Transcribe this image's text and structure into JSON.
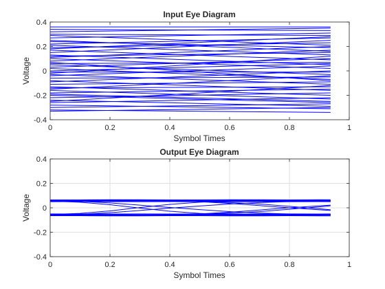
{
  "chart_data": [
    {
      "type": "line",
      "title": "Input Eye Diagram",
      "xlabel": "Symbol Times",
      "ylabel": "Voltage",
      "xlim": [
        0,
        1
      ],
      "ylim": [
        -0.4,
        0.4
      ],
      "x_ticks": [
        "0",
        "0.2",
        "0.4",
        "0.6",
        "0.8",
        "1"
      ],
      "y_ticks": [
        "-0.4",
        "-0.2",
        "0",
        "0.2",
        "0.4"
      ],
      "grid": false,
      "color": "#0000ff",
      "x": [
        0,
        0.9375
      ],
      "series": [
        {
          "values": [
            0.36,
            0.36
          ]
        },
        {
          "values": [
            0.34,
            0.33
          ]
        },
        {
          "values": [
            0.32,
            0.35
          ]
        },
        {
          "values": [
            0.3,
            0.29
          ]
        },
        {
          "values": [
            0.29,
            0.21
          ]
        },
        {
          "values": [
            0.27,
            0.31
          ]
        },
        {
          "values": [
            0.24,
            0.19
          ]
        },
        {
          "values": [
            0.22,
            0.27
          ]
        },
        {
          "values": [
            0.21,
            0.13
          ]
        },
        {
          "values": [
            0.19,
            0.23
          ]
        },
        {
          "values": [
            0.17,
            0.09
          ]
        },
        {
          "values": [
            0.15,
            0.25
          ]
        },
        {
          "values": [
            0.13,
            0.05
          ]
        },
        {
          "values": [
            0.12,
            0.15
          ]
        },
        {
          "values": [
            0.1,
            0.02
          ]
        },
        {
          "values": [
            0.08,
            0.17
          ]
        },
        {
          "values": [
            0.06,
            0.07
          ]
        },
        {
          "values": [
            0.05,
            -0.03
          ]
        },
        {
          "values": [
            0.03,
            0.1
          ]
        },
        {
          "values": [
            0.02,
            -0.07
          ]
        },
        {
          "values": [
            0.0,
            0.06
          ]
        },
        {
          "values": [
            -0.01,
            -0.01
          ]
        },
        {
          "values": [
            -0.03,
            -0.11
          ]
        },
        {
          "values": [
            -0.04,
            0.04
          ]
        },
        {
          "values": [
            -0.06,
            -0.05
          ]
        },
        {
          "values": [
            -0.08,
            -0.16
          ]
        },
        {
          "values": [
            -0.09,
            0.0
          ]
        },
        {
          "values": [
            -0.11,
            -0.09
          ]
        },
        {
          "values": [
            -0.13,
            -0.2
          ]
        },
        {
          "values": [
            -0.14,
            -0.13
          ]
        },
        {
          "values": [
            -0.16,
            -0.23
          ]
        },
        {
          "values": [
            -0.18,
            -0.15
          ]
        },
        {
          "values": [
            -0.2,
            -0.26
          ]
        },
        {
          "values": [
            -0.22,
            -0.18
          ]
        },
        {
          "values": [
            -0.24,
            -0.29
          ]
        },
        {
          "values": [
            -0.26,
            -0.22
          ]
        },
        {
          "values": [
            -0.28,
            -0.31
          ]
        },
        {
          "values": [
            -0.3,
            -0.27
          ]
        },
        {
          "values": [
            -0.32,
            -0.34
          ]
        },
        {
          "values": [
            -0.33,
            -0.3
          ]
        },
        {
          "values": [
            0.25,
            0.16
          ]
        },
        {
          "values": [
            0.11,
            0.2
          ]
        },
        {
          "values": [
            -0.02,
            0.12
          ]
        },
        {
          "values": [
            -0.15,
            -0.04
          ]
        },
        {
          "values": [
            -0.25,
            -0.12
          ]
        },
        {
          "values": [
            0.07,
            -0.08
          ]
        },
        {
          "values": [
            0.18,
            0.28
          ]
        },
        {
          "values": [
            -0.19,
            -0.25
          ]
        }
      ]
    },
    {
      "type": "line",
      "title": "Output Eye Diagram",
      "xlabel": "Symbol Times",
      "ylabel": "Voltage",
      "xlim": [
        0,
        1
      ],
      "ylim": [
        -0.4,
        0.4
      ],
      "x_ticks": [
        "0",
        "0.2",
        "0.4",
        "0.6",
        "0.8",
        "1"
      ],
      "y_ticks": [
        "-0.4",
        "-0.2",
        "0",
        "0.2",
        "0.4"
      ],
      "grid": true,
      "color": "#0000ff",
      "x": [
        0,
        0.1,
        0.2,
        0.3,
        0.4,
        0.5,
        0.6,
        0.7,
        0.8,
        0.9,
        0.9375
      ],
      "series": [
        {
          "values": [
            0.065,
            0.065,
            0.066,
            0.066,
            0.065,
            0.065,
            0.066,
            0.066,
            0.065,
            0.066,
            0.066
          ]
        },
        {
          "values": [
            0.06,
            0.061,
            0.061,
            0.06,
            0.061,
            0.06,
            0.061,
            0.061,
            0.06,
            0.061,
            0.06
          ]
        },
        {
          "values": [
            0.055,
            0.056,
            0.055,
            0.056,
            0.056,
            0.055,
            0.056,
            0.055,
            0.056,
            0.056,
            0.055
          ]
        },
        {
          "values": [
            0.05,
            0.051,
            0.051,
            0.05,
            0.051,
            0.05,
            0.051,
            0.051,
            0.05,
            0.051,
            0.05
          ]
        },
        {
          "values": [
            -0.05,
            -0.051,
            -0.051,
            -0.05,
            -0.051,
            -0.05,
            -0.051,
            -0.051,
            -0.05,
            -0.051,
            -0.05
          ]
        },
        {
          "values": [
            -0.055,
            -0.056,
            -0.055,
            -0.056,
            -0.056,
            -0.055,
            -0.056,
            -0.055,
            -0.056,
            -0.056,
            -0.055
          ]
        },
        {
          "values": [
            -0.06,
            -0.061,
            -0.061,
            -0.06,
            -0.061,
            -0.06,
            -0.061,
            -0.061,
            -0.06,
            -0.061,
            -0.06
          ]
        },
        {
          "values": [
            -0.065,
            -0.065,
            -0.066,
            -0.066,
            -0.065,
            -0.065,
            -0.066,
            -0.066,
            -0.065,
            -0.066,
            -0.066
          ]
        },
        {
          "values": [
            0.06,
            0.053,
            0.04,
            0.022,
            0.003,
            -0.015,
            -0.031,
            -0.043,
            -0.051,
            -0.055,
            -0.056
          ]
        },
        {
          "values": [
            -0.06,
            -0.053,
            -0.04,
            -0.022,
            -0.003,
            0.015,
            0.031,
            0.043,
            0.051,
            0.055,
            0.056
          ]
        },
        {
          "values": [
            0.055,
            0.046,
            0.025,
            -0.002,
            -0.028,
            -0.046,
            -0.056,
            -0.059,
            -0.06,
            -0.06,
            -0.06
          ]
        },
        {
          "values": [
            -0.055,
            -0.046,
            -0.025,
            0.002,
            0.028,
            0.046,
            0.056,
            0.059,
            0.06,
            0.06,
            0.06
          ]
        },
        {
          "values": [
            0.062,
            0.062,
            0.062,
            0.061,
            0.058,
            0.05,
            0.036,
            0.018,
            0.0,
            -0.016,
            -0.022
          ]
        },
        {
          "values": [
            -0.062,
            -0.062,
            -0.062,
            -0.061,
            -0.058,
            -0.05,
            -0.036,
            -0.018,
            0.0,
            0.016,
            0.022
          ]
        },
        {
          "values": [
            0.06,
            0.06,
            0.06,
            0.059,
            0.057,
            0.052,
            0.044,
            0.031,
            0.012,
            -0.008,
            -0.016
          ]
        },
        {
          "values": [
            -0.06,
            -0.06,
            -0.06,
            -0.059,
            -0.057,
            -0.052,
            -0.044,
            -0.031,
            -0.012,
            0.008,
            0.016
          ]
        }
      ]
    }
  ]
}
